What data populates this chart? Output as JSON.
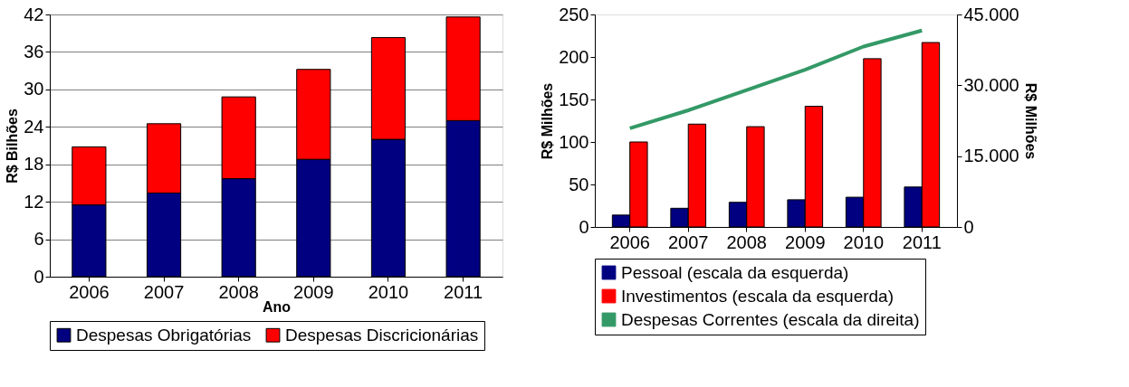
{
  "chart_data": [
    {
      "type": "bar",
      "stacked": true,
      "xlabel": "Ano",
      "ylabel": "R$ Bilhões",
      "categories": [
        "2006",
        "2007",
        "2008",
        "2009",
        "2010",
        "2011"
      ],
      "ylim": [
        0,
        42
      ],
      "yticks": [
        0,
        6,
        12,
        18,
        24,
        30,
        36,
        42
      ],
      "grid": "y",
      "legend": "bottom",
      "series": [
        {
          "name": "Despesas Obrigatórias",
          "color": "#000080",
          "values": [
            11.5,
            13.4,
            15.7,
            18.8,
            22.0,
            25.0
          ]
        },
        {
          "name": "Despesas Discricionárias",
          "color": "#ff0000",
          "values": [
            9.3,
            11.1,
            13.1,
            14.4,
            16.3,
            16.6
          ]
        }
      ]
    },
    {
      "type": "bar",
      "ylabel": "R$ Milhões",
      "y2label": "R$ Milhões",
      "categories": [
        "2006",
        "2007",
        "2008",
        "2009",
        "2010",
        "2011"
      ],
      "ylim": [
        0,
        250
      ],
      "yticks": [
        0,
        50,
        100,
        150,
        200,
        250
      ],
      "y2lim": [
        0,
        45000
      ],
      "y2ticks": [
        {
          "value": 0,
          "label": "0"
        },
        {
          "value": 15000,
          "label": "15.000"
        },
        {
          "value": 30000,
          "label": "30.000"
        },
        {
          "value": 45000,
          "label": "45.000"
        }
      ],
      "legend": "bottom",
      "series": [
        {
          "name": "Pessoal (escala da esquerda)",
          "color": "#000080",
          "values": [
            14,
            22,
            29,
            32,
            35,
            47
          ]
        },
        {
          "name": "Investimentos (escala da esquerda)",
          "color": "#ff0000",
          "values": [
            100,
            121,
            118,
            142,
            198,
            217
          ]
        },
        {
          "name": "Despesas Correntes (escala da direita)",
          "type": "line",
          "axis": "y2",
          "color": "#339966",
          "values": [
            20900,
            24700,
            29000,
            33300,
            38200,
            41600
          ]
        }
      ]
    }
  ]
}
